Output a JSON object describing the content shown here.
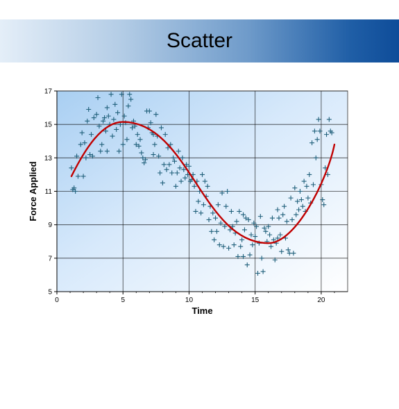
{
  "slide": {
    "title": "Scatter"
  },
  "colors": {
    "marker": "#1f5f7a",
    "fit_line": "#c00000",
    "grid": "#000000",
    "plot_bg_light": "#ffffff",
    "plot_bg_dark": "#a9cff2"
  },
  "chart_data": {
    "type": "scatter",
    "title": "",
    "xlabel": "Time",
    "ylabel": "Force Applied",
    "xlim": [
      0,
      22
    ],
    "ylim": [
      5,
      17
    ],
    "x_ticks": [
      0,
      5,
      10,
      15,
      20
    ],
    "y_ticks": [
      5,
      7,
      9,
      11,
      13,
      15,
      17
    ],
    "grid": true,
    "legend": "none",
    "series": [
      {
        "marker": "plus",
        "points": [
          [
            1.1,
            12.4
          ],
          [
            1.2,
            11.1
          ],
          [
            1.3,
            11.2
          ],
          [
            1.4,
            11.0
          ],
          [
            1.5,
            13.1
          ],
          [
            1.6,
            11.9
          ],
          [
            1.8,
            13.8
          ],
          [
            1.9,
            14.5
          ],
          [
            2.0,
            11.9
          ],
          [
            2.1,
            13.9
          ],
          [
            2.2,
            13.0
          ],
          [
            2.3,
            15.2
          ],
          [
            2.4,
            15.9
          ],
          [
            2.5,
            13.2
          ],
          [
            2.6,
            14.4
          ],
          [
            2.7,
            13.1
          ],
          [
            2.8,
            15.4
          ],
          [
            3.0,
            15.6
          ],
          [
            3.1,
            16.6
          ],
          [
            3.2,
            14.9
          ],
          [
            3.3,
            13.4
          ],
          [
            3.4,
            13.8
          ],
          [
            3.5,
            15.2
          ],
          [
            3.6,
            15.4
          ],
          [
            3.7,
            14.6
          ],
          [
            3.8,
            13.4
          ],
          [
            3.9,
            15.5
          ],
          [
            4.0,
            15.0
          ],
          [
            4.1,
            16.8
          ],
          [
            4.2,
            14.3
          ],
          [
            4.3,
            15.3
          ],
          [
            4.4,
            16.2
          ],
          [
            4.5,
            14.7
          ],
          [
            4.6,
            15.7
          ],
          [
            4.7,
            13.4
          ],
          [
            4.8,
            15.0
          ],
          [
            4.9,
            16.8
          ],
          [
            5.0,
            13.8
          ],
          [
            5.1,
            15.5
          ],
          [
            5.2,
            15.1
          ],
          [
            5.3,
            14.1
          ],
          [
            5.4,
            16.1
          ],
          [
            5.5,
            16.8
          ],
          [
            5.6,
            16.5
          ],
          [
            5.7,
            14.8
          ],
          [
            5.8,
            15.2
          ],
          [
            5.9,
            14.9
          ],
          [
            6.0,
            13.8
          ],
          [
            6.1,
            14.4
          ],
          [
            6.2,
            13.7
          ],
          [
            6.3,
            14.1
          ],
          [
            6.4,
            13.3
          ],
          [
            6.5,
            13.0
          ],
          [
            6.6,
            12.7
          ],
          [
            6.7,
            12.9
          ],
          [
            6.8,
            15.8
          ],
          [
            6.9,
            14.8
          ],
          [
            7.0,
            15.8
          ],
          [
            7.1,
            15.1
          ],
          [
            7.2,
            14.5
          ],
          [
            7.3,
            14.4
          ],
          [
            7.4,
            13.8
          ],
          [
            7.5,
            15.6
          ],
          [
            7.6,
            14.3
          ],
          [
            7.7,
            13.1
          ],
          [
            7.8,
            12.1
          ],
          [
            7.9,
            14.8
          ],
          [
            8.0,
            11.5
          ],
          [
            8.1,
            12.6
          ],
          [
            8.2,
            14.4
          ],
          [
            8.3,
            12.3
          ],
          [
            8.4,
            13.6
          ],
          [
            8.5,
            12.6
          ],
          [
            8.6,
            13.8
          ],
          [
            8.7,
            12.1
          ],
          [
            8.8,
            13.0
          ],
          [
            8.9,
            12.8
          ],
          [
            9.0,
            11.3
          ],
          [
            9.1,
            12.1
          ],
          [
            9.2,
            13.4
          ],
          [
            9.3,
            12.4
          ],
          [
            9.4,
            11.6
          ],
          [
            9.5,
            13.0
          ],
          [
            9.6,
            12.3
          ],
          [
            9.7,
            11.8
          ],
          [
            9.8,
            12.6
          ],
          [
            9.9,
            12.0
          ],
          [
            10.0,
            12.5
          ],
          [
            10.1,
            11.6
          ],
          [
            10.2,
            11.7
          ],
          [
            10.3,
            12.0
          ],
          [
            10.4,
            11.3
          ],
          [
            10.5,
            9.8
          ],
          [
            10.6,
            11.6
          ],
          [
            10.7,
            10.4
          ],
          [
            10.8,
            11.0
          ],
          [
            10.9,
            9.7
          ],
          [
            11.0,
            12.0
          ],
          [
            11.1,
            10.2
          ],
          [
            11.2,
            11.6
          ],
          [
            11.3,
            10.7
          ],
          [
            11.4,
            11.3
          ],
          [
            11.5,
            9.3
          ],
          [
            11.6,
            10.1
          ],
          [
            11.7,
            8.6
          ],
          [
            11.8,
            9.7
          ],
          [
            11.9,
            8.1
          ],
          [
            12.0,
            9.4
          ],
          [
            12.1,
            8.6
          ],
          [
            12.2,
            10.2
          ],
          [
            12.3,
            7.8
          ],
          [
            12.4,
            9.1
          ],
          [
            12.5,
            10.9
          ],
          [
            12.6,
            7.7
          ],
          [
            12.7,
            8.9
          ],
          [
            12.8,
            10.1
          ],
          [
            12.9,
            11.0
          ],
          [
            13.0,
            7.6
          ],
          [
            13.1,
            8.7
          ],
          [
            13.2,
            9.8
          ],
          [
            13.3,
            8.9
          ],
          [
            13.4,
            7.8
          ],
          [
            13.5,
            8.5
          ],
          [
            13.6,
            9.2
          ],
          [
            13.7,
            7.1
          ],
          [
            13.8,
            9.8
          ],
          [
            13.9,
            7.7
          ],
          [
            14.0,
            8.1
          ],
          [
            14.1,
            7.1
          ],
          [
            14.2,
            8.7
          ],
          [
            14.3,
            9.4
          ],
          [
            14.4,
            6.6
          ],
          [
            14.5,
            9.3
          ],
          [
            14.6,
            7.2
          ],
          [
            14.7,
            8.4
          ],
          [
            14.8,
            7.8
          ],
          [
            14.9,
            9.1
          ],
          [
            15.0,
            8.3
          ],
          [
            15.1,
            8.9
          ],
          [
            15.2,
            6.1
          ],
          [
            15.3,
            7.9
          ],
          [
            15.4,
            9.5
          ],
          [
            15.5,
            7.0
          ],
          [
            15.6,
            6.2
          ],
          [
            15.7,
            8.8
          ],
          [
            15.8,
            8.6
          ],
          [
            15.9,
            8.0
          ],
          [
            16.0,
            8.9
          ],
          [
            16.1,
            8.4
          ],
          [
            16.2,
            7.7
          ],
          [
            16.3,
            9.4
          ],
          [
            16.4,
            8.1
          ],
          [
            16.5,
            6.9
          ],
          [
            16.6,
            7.9
          ],
          [
            16.7,
            9.9
          ],
          [
            16.8,
            9.4
          ],
          [
            16.9,
            8.4
          ],
          [
            17.0,
            7.4
          ],
          [
            17.1,
            9.6
          ],
          [
            17.2,
            10.1
          ],
          [
            17.3,
            8.2
          ],
          [
            17.4,
            9.2
          ],
          [
            17.5,
            7.5
          ],
          [
            17.6,
            7.3
          ],
          [
            17.7,
            10.6
          ],
          [
            17.8,
            9.3
          ],
          [
            17.9,
            7.3
          ],
          [
            18.0,
            11.2
          ],
          [
            18.1,
            9.6
          ],
          [
            18.2,
            10.4
          ],
          [
            18.3,
            9.9
          ],
          [
            18.4,
            11.0
          ],
          [
            18.5,
            10.5
          ],
          [
            18.6,
            10.1
          ],
          [
            18.7,
            11.6
          ],
          [
            18.8,
            9.8
          ],
          [
            18.9,
            11.3
          ],
          [
            19.0,
            10.6
          ],
          [
            19.1,
            12.0
          ],
          [
            19.2,
            10.3
          ],
          [
            19.3,
            13.9
          ],
          [
            19.4,
            11.4
          ],
          [
            19.5,
            14.6
          ],
          [
            19.6,
            13.0
          ],
          [
            19.7,
            14.1
          ],
          [
            19.8,
            15.3
          ],
          [
            19.9,
            14.6
          ],
          [
            20.0,
            11.4
          ],
          [
            20.1,
            10.5
          ],
          [
            20.2,
            10.2
          ],
          [
            20.3,
            12.4
          ],
          [
            20.4,
            14.4
          ],
          [
            20.5,
            12.0
          ],
          [
            20.6,
            15.3
          ],
          [
            20.7,
            14.6
          ],
          [
            20.8,
            14.5
          ],
          [
            16.7,
            8.2
          ],
          [
            14.1,
            9.6
          ],
          [
            7.3,
            13.2
          ],
          [
            3.8,
            16.0
          ]
        ]
      }
    ],
    "fit_line": {
      "x_start": 1.1,
      "x_end": 21.0,
      "y_start": 11.9,
      "peak": [
        5.0,
        15.15
      ],
      "trough": [
        16.0,
        7.9
      ],
      "y_end": 13.8
    }
  }
}
